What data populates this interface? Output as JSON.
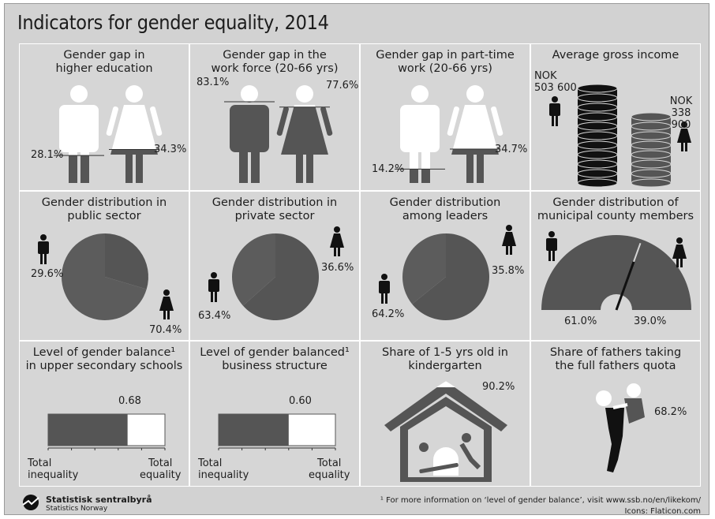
{
  "title": "Indicators for gender equality, 2014",
  "colors": {
    "background": "#d2d2d2",
    "dark": "#555555",
    "light": "#ffffff",
    "black": "#111111"
  },
  "chart_data": [
    {
      "type": "bar",
      "title": "Gender gap in\nhigher education",
      "series": [
        {
          "name": "",
          "values": [
            28.1,
            34.3
          ]
        }
      ],
      "labels": [
        "28.1%",
        "34.3%"
      ]
    },
    {
      "type": "bar",
      "title": "Gender gap in the\nwork force (20-66 yrs)",
      "series": [
        {
          "name": "",
          "values": [
            83.1,
            77.6
          ]
        }
      ],
      "labels": [
        "83.1%",
        "77.6%"
      ]
    },
    {
      "type": "bar",
      "title": "Gender gap in part-time\nwork (20-66 yrs)",
      "series": [
        {
          "name": "",
          "values": [
            14.2,
            34.7
          ]
        }
      ],
      "labels": [
        "14.2%",
        "34.7%"
      ]
    },
    {
      "type": "bar",
      "title": "Average gross income",
      "values": [
        503600,
        338900
      ],
      "labels": [
        "NOK\n503 600",
        "NOK\n338 900"
      ]
    },
    {
      "type": "pie",
      "title": "Gender distribution in\npublic sector",
      "values": [
        29.6,
        70.4
      ],
      "labels": [
        "29.6%",
        "70.4%"
      ]
    },
    {
      "type": "pie",
      "title": "Gender distribution in\nprivate sector",
      "values": [
        63.4,
        36.6
      ],
      "labels": [
        "63.4%",
        "36.6%"
      ]
    },
    {
      "type": "pie",
      "title": "Gender distribution\namong leaders",
      "values": [
        64.2,
        35.8
      ],
      "labels": [
        "64.2%",
        "35.8%"
      ]
    },
    {
      "type": "pie",
      "title": "Gender distribution of\nmunicipal county members",
      "values": [
        61.0,
        39.0
      ],
      "labels": [
        "61.0%",
        "39.0%"
      ]
    },
    {
      "type": "bar",
      "title": "Level of gender balance¹\nin upper secondary schools",
      "values": [
        0.68
      ],
      "value_label": "0.68",
      "xlim": [
        0,
        1
      ],
      "xlabels": [
        "Total\ninequality",
        "Total\nequality"
      ]
    },
    {
      "type": "bar",
      "title": "Level of gender balanced¹\nbusiness structure",
      "values": [
        0.6
      ],
      "value_label": "0.60",
      "xlim": [
        0,
        1
      ],
      "xlabels": [
        "Total\ninequality",
        "Total\nequality"
      ]
    },
    {
      "type": "bar",
      "title": "Share of 1-5 yrs old in\nkindergarten",
      "values": [
        90.2
      ],
      "value_label": "90.2%"
    },
    {
      "type": "bar",
      "title": "Share of fathers taking\nthe full fathers quota",
      "values": [
        68.2
      ],
      "value_label": "68.2%"
    }
  ],
  "footer": {
    "org_name": "Statistisk sentralbyrå",
    "org_sub": "Statistics Norway",
    "footnote": "¹ For more information on ‘level of gender balance’, visit www.ssb.no/en/likekom/",
    "credit": "Icons: Flaticon.com"
  }
}
